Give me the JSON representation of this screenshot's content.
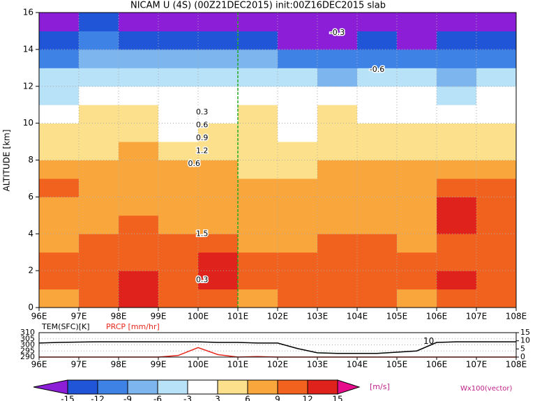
{
  "chart_data": [
    {
      "type": "contourf",
      "title": "NICAM U (4S) (00Z21DEC2015) init:00Z16DEC2015 slab",
      "ylabel": "ALTITUDE [km]",
      "xlim": [
        96,
        108
      ],
      "ylim": [
        0,
        16
      ],
      "xticks": [
        {
          "value": 96,
          "label": "96E"
        },
        {
          "value": 97,
          "label": "97E"
        },
        {
          "value": 98,
          "label": "98E"
        },
        {
          "value": 99,
          "label": "99E"
        },
        {
          "value": 100,
          "label": "100E"
        },
        {
          "value": 101,
          "label": "101E"
        },
        {
          "value": 102,
          "label": "102E"
        },
        {
          "value": 103,
          "label": "103E"
        },
        {
          "value": 104,
          "label": "104E"
        },
        {
          "value": 105,
          "label": "105E"
        },
        {
          "value": 106,
          "label": "106E"
        },
        {
          "value": 107,
          "label": "107E"
        },
        {
          "value": 108,
          "label": "108E"
        }
      ],
      "yticks": [
        0,
        2,
        4,
        6,
        8,
        10,
        12,
        14,
        16
      ],
      "grid": true,
      "vline": 101,
      "field": {
        "values": [
          [
            8,
            9,
            12,
            10,
            11,
            8,
            10,
            9,
            10,
            8,
            11,
            10
          ],
          [
            10,
            11,
            12,
            11,
            12,
            9,
            10,
            10,
            11,
            10,
            12,
            11
          ],
          [
            9,
            10,
            11,
            10,
            12,
            9,
            9,
            10,
            10,
            9,
            11,
            10
          ],
          [
            8,
            9,
            10,
            9,
            10,
            8,
            8,
            9,
            9,
            8,
            10,
            10
          ],
          [
            7,
            8,
            9,
            8,
            8,
            7,
            7,
            8,
            8,
            8,
            13,
            11
          ],
          [
            8,
            7,
            8,
            7,
            8,
            7,
            7,
            7,
            7,
            7,
            13,
            11
          ],
          [
            9,
            8,
            7,
            7,
            7,
            6,
            6,
            7,
            7,
            7,
            10,
            9
          ],
          [
            7,
            7,
            6,
            6,
            6,
            5,
            5,
            6,
            6,
            6,
            7,
            6
          ],
          [
            5,
            5,
            6,
            4,
            4,
            4,
            3,
            4,
            5,
            4,
            5,
            4
          ],
          [
            4,
            4,
            3,
            2,
            3,
            3,
            2,
            3,
            4,
            3,
            4,
            3
          ],
          [
            2,
            3,
            4,
            1,
            1,
            4,
            2,
            4,
            2,
            1,
            2,
            1
          ],
          [
            -4,
            -2,
            -1,
            -1,
            -2,
            -1,
            -2,
            -1,
            -2,
            -3,
            -4,
            -2
          ],
          [
            -6,
            -4,
            -4,
            -5,
            -5,
            -5,
            -6,
            -7,
            -5,
            -6,
            -7,
            -6
          ],
          [
            -10,
            -9,
            -8,
            -8,
            -9,
            -9,
            -10,
            -11,
            -10,
            -11,
            -12,
            -11
          ],
          [
            -13,
            -12,
            -13,
            -13,
            -14,
            -14,
            -16,
            -16,
            -15,
            -16,
            -14,
            -14
          ],
          [
            -16,
            -15,
            -16,
            -17,
            -17,
            -17,
            -18,
            -18,
            -18,
            -17,
            -17,
            -18
          ]
        ]
      },
      "levels": [
        -15,
        -12,
        -9,
        -6,
        -3,
        3,
        6,
        9,
        12,
        15
      ],
      "colors": [
        "#8d1ed8",
        "#1f55d6",
        "#3e82e6",
        "#7db5ee",
        "#b8e2f7",
        "#ffffff",
        "#fde08c",
        "#f9a63c",
        "#f2621f",
        "#e0221c",
        "#a8082a",
        "#e60c8c"
      ],
      "colorbar_label": "[m/s]",
      "vector_label": "Wx100(vector)",
      "annotations": [
        {
          "text": "-0.3",
          "x": 103.5,
          "y": 14.9
        },
        {
          "text": "-0.6",
          "x": 104.5,
          "y": 12.9
        },
        {
          "text": "0.3",
          "x": 100.1,
          "y": 10.6
        },
        {
          "text": "0.6",
          "x": 100.1,
          "y": 9.9
        },
        {
          "text": "0.9",
          "x": 100.1,
          "y": 9.2
        },
        {
          "text": "1.2",
          "x": 100.1,
          "y": 8.5
        },
        {
          "text": "0.6",
          "x": 99.9,
          "y": 7.8
        },
        {
          "text": "1.5",
          "x": 100.1,
          "y": 4.0
        },
        {
          "text": "0.3",
          "x": 100.1,
          "y": 1.5
        }
      ]
    },
    {
      "type": "line",
      "xlim": [
        96,
        108
      ],
      "xticks": [
        {
          "value": 96,
          "label": "96E"
        },
        {
          "value": 97,
          "label": "97E"
        },
        {
          "value": 98,
          "label": "98E"
        },
        {
          "value": 99,
          "label": "99E"
        },
        {
          "value": 100,
          "label": "100E"
        },
        {
          "value": 101,
          "label": "101E"
        },
        {
          "value": 102,
          "label": "102E"
        },
        {
          "value": 103,
          "label": "103E"
        },
        {
          "value": 104,
          "label": "104E"
        },
        {
          "value": 105,
          "label": "105E"
        },
        {
          "value": 106,
          "label": "106E"
        },
        {
          "value": 107,
          "label": "107E"
        },
        {
          "value": 108,
          "label": "108E"
        }
      ],
      "ylim": [
        290,
        310
      ],
      "yticks": [
        290,
        295,
        300,
        305,
        310
      ],
      "y2lim": [
        0,
        15
      ],
      "y2ticks": [
        0,
        5,
        10,
        15
      ],
      "x": [
        96,
        96.5,
        97,
        97.5,
        98,
        98.5,
        99,
        99.5,
        100,
        100.5,
        101,
        101.5,
        102,
        102.5,
        103,
        103.5,
        104,
        104.5,
        105,
        105.5,
        106,
        106.5,
        107,
        107.5,
        108
      ],
      "series": [
        {
          "name": "TEM(SFC)[K]",
          "color": "#000000",
          "values": [
            301.5,
            302,
            302.3,
            302.5,
            302.5,
            302.5,
            302.5,
            302.5,
            302.5,
            302,
            302,
            301.5,
            301.5,
            297,
            293.5,
            293,
            293,
            293,
            294,
            295,
            302,
            302.5,
            302.5,
            302.5,
            302.5
          ]
        },
        {
          "name": "PRCP [mm/hr]",
          "color": "#e8281e",
          "axis": "y2",
          "values": [
            0,
            0,
            0,
            0,
            0,
            0,
            0,
            1,
            5.8,
            1.5,
            0,
            0.3,
            0,
            0,
            0,
            0,
            0,
            0,
            0,
            0,
            0,
            0,
            0,
            0,
            0
          ]
        }
      ],
      "annotations": [
        {
          "text": "10",
          "x": 105.8,
          "y": 303
        }
      ]
    }
  ]
}
